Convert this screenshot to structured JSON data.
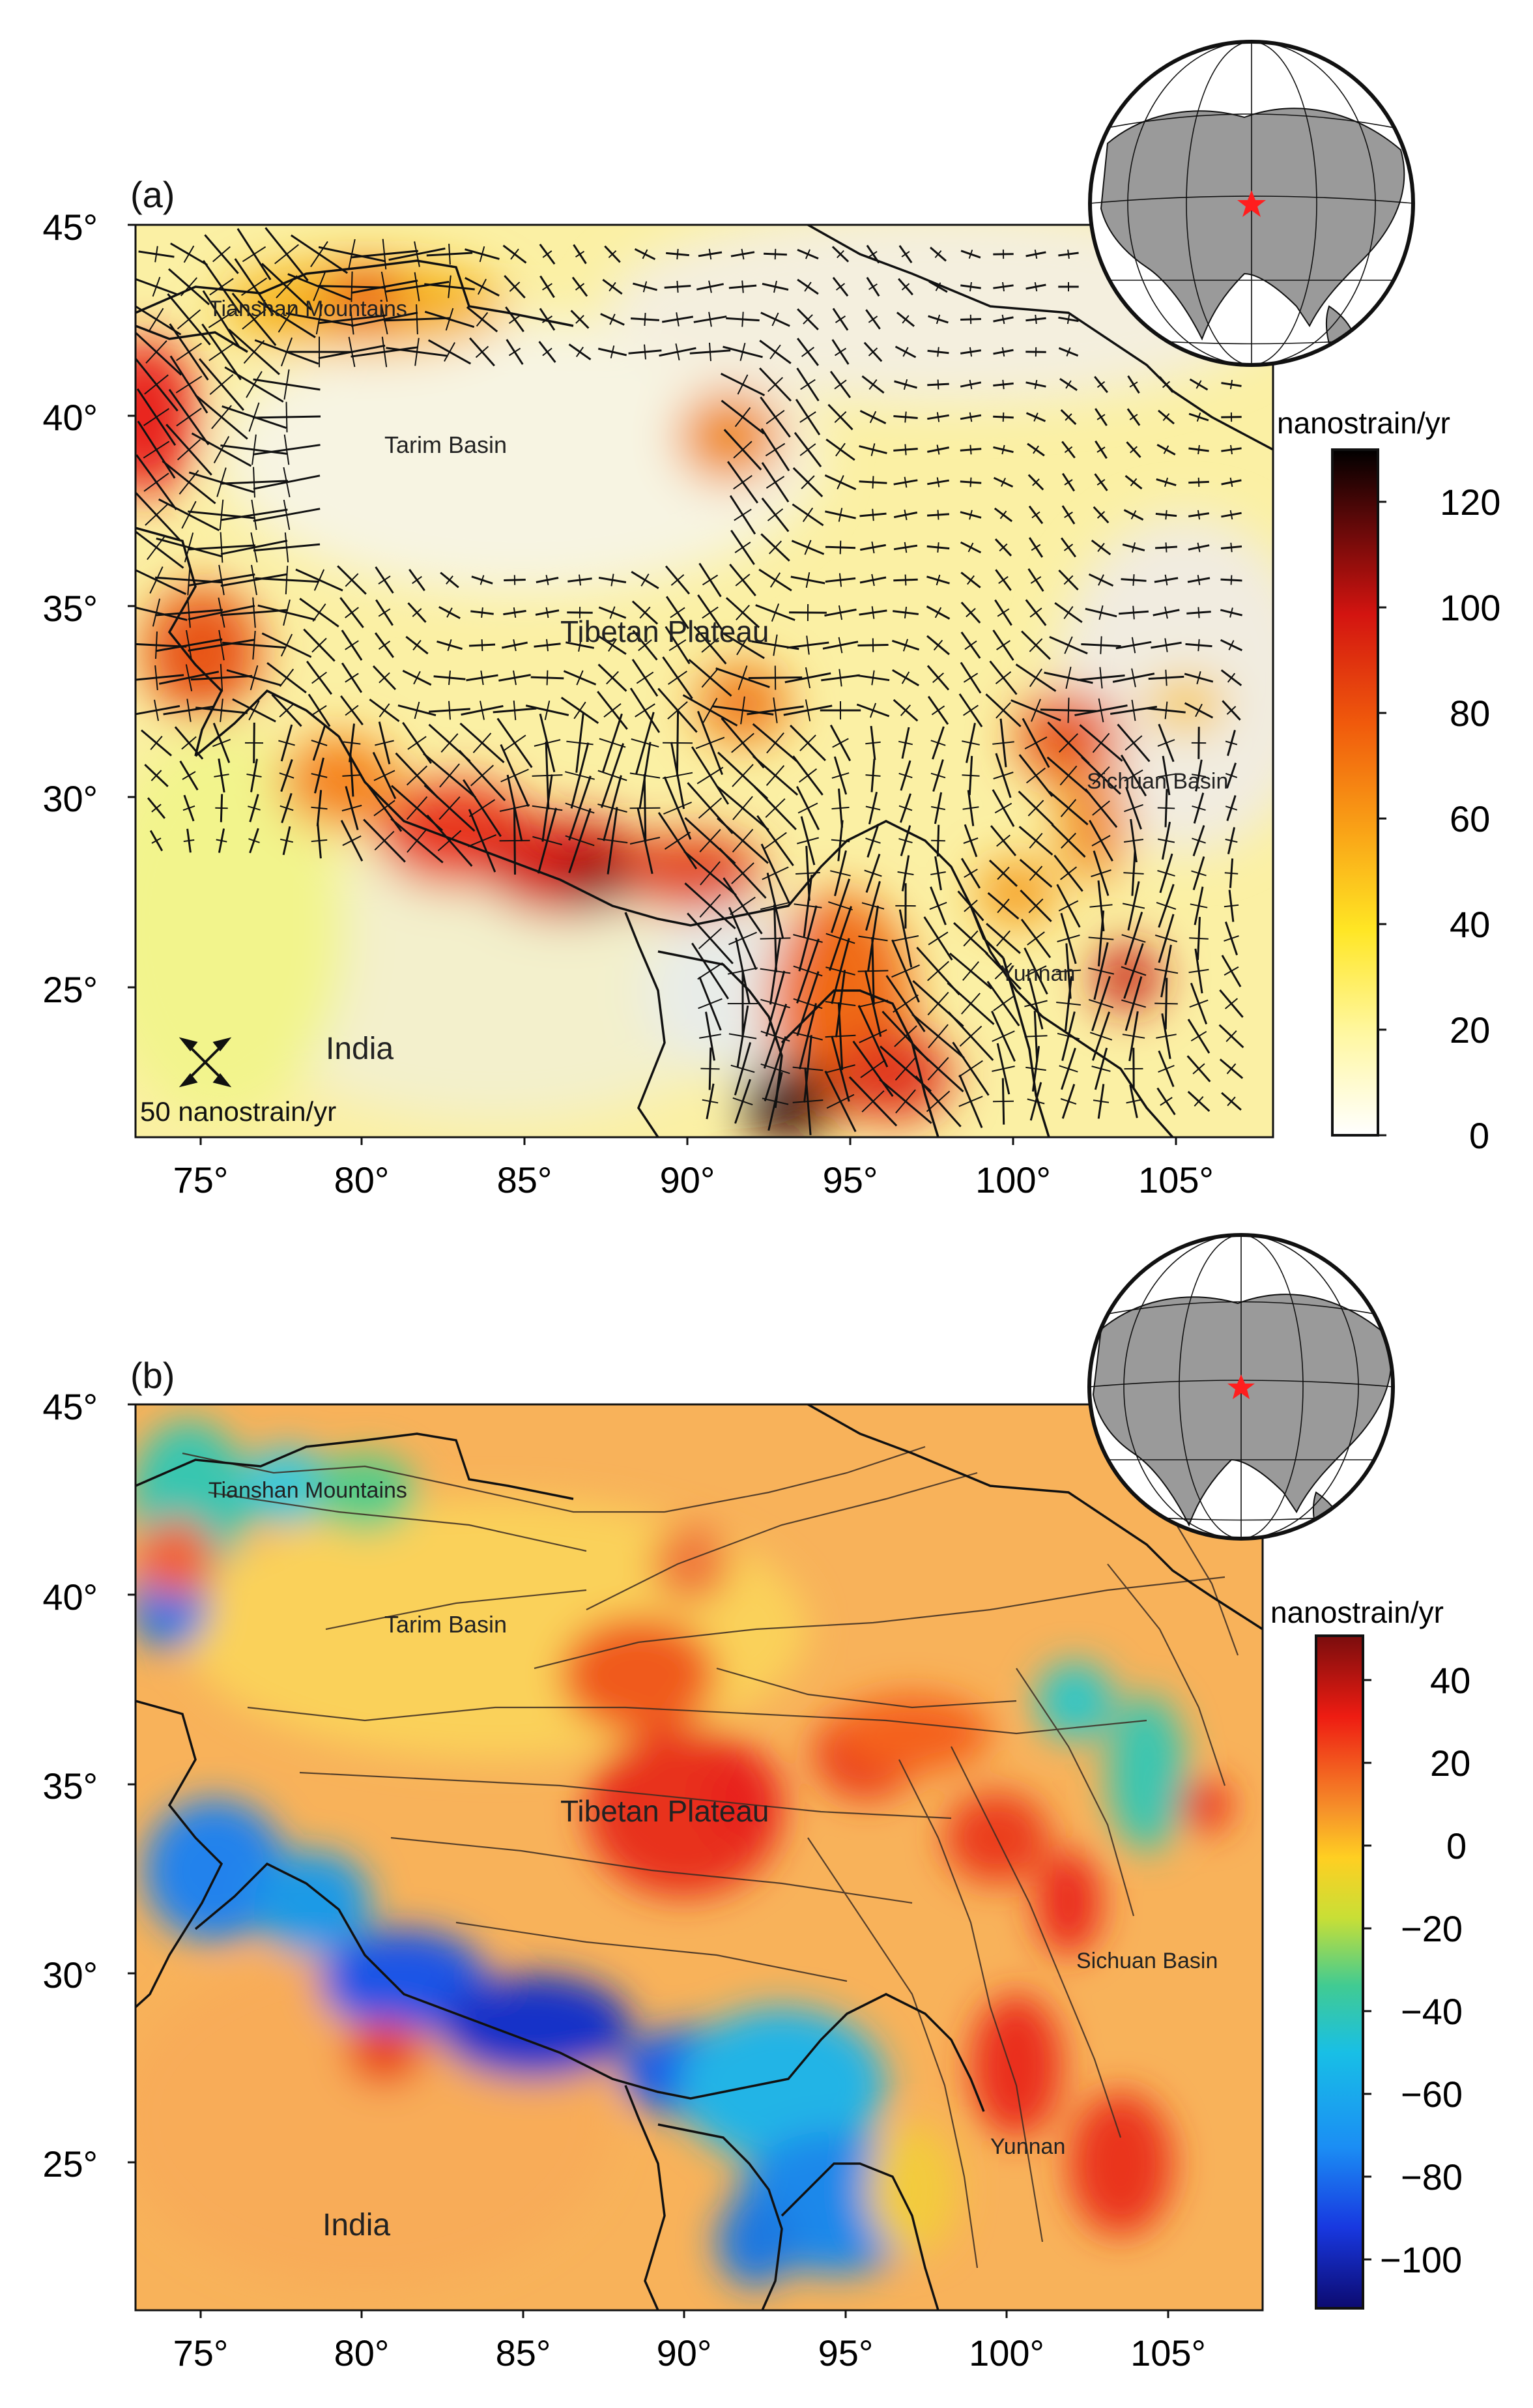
{
  "panels": [
    {
      "panel_label": "(a)",
      "lat_ticks": [
        "45°",
        "40°",
        "35°",
        "30°",
        "25°"
      ],
      "lon_ticks": [
        "75°",
        "80°",
        "85°",
        "90°",
        "95°",
        "100°",
        "105°"
      ],
      "places": [
        "Tianshan Mountains",
        "Tarim Basin",
        "Tibetan Plateau",
        "Sichuan Basin",
        "Yunnan",
        "India"
      ],
      "scale_label": "50 nanostrain/yr",
      "colorbar": {
        "unit": "nanostrain/yr",
        "ticks": [
          "120",
          "100",
          "80",
          "60",
          "40",
          "20",
          "0"
        ],
        "range": [
          0,
          130
        ],
        "colors": [
          "#000000",
          "#8a0f0f",
          "#e01a10",
          "#f5700c",
          "#fbb81a",
          "#ffef24",
          "#fff9a6",
          "#ffffff"
        ]
      }
    },
    {
      "panel_label": "(b)",
      "lat_ticks": [
        "45°",
        "40°",
        "35°",
        "30°",
        "25°"
      ],
      "lon_ticks": [
        "75°",
        "80°",
        "85°",
        "90°",
        "95°",
        "100°",
        "105°"
      ],
      "places": [
        "Tianshan Mountains",
        "Tarim Basin",
        "Tibetan Plateau",
        "Sichuan Basin",
        "Yunnan",
        "India"
      ],
      "colorbar": {
        "unit": "nanostrain/yr",
        "ticks": [
          "40",
          "20",
          "0",
          "−20",
          "−40",
          "−60",
          "−80",
          "−100"
        ],
        "range": [
          -110,
          48
        ],
        "colors": [
          "#8b1010",
          "#ff2a12",
          "#f8962a",
          "#ffd21f",
          "#a5d83c",
          "#2dc7a3",
          "#17b4ea",
          "#1a55f0",
          "#101080"
        ]
      }
    }
  ],
  "map_colors": {
    "strain_rate_base": "#fbf0a4",
    "strain_rate_basin": "#f6f3e0",
    "dilatation_base": "#f8b25a",
    "border": "#111111",
    "fault": "#3a2b22",
    "marker": "#ff1e1e"
  },
  "icons": [
    "globe-inset",
    "location-star-icon",
    "strain-cross-icon"
  ]
}
